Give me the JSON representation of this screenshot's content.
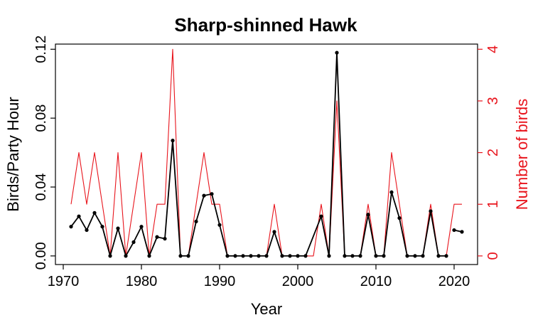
{
  "chart_data": {
    "type": "line",
    "title": "Sharp-shinned Hawk",
    "xlabel": "Year",
    "ylabel": "Birds/Party Hour",
    "y2label": "Number of birds",
    "xlim": [
      1969,
      2023
    ],
    "ylim": [
      -0.005,
      0.123
    ],
    "y2lim": [
      -0.1667,
      4.1
    ],
    "xticks": [
      1970,
      1980,
      1990,
      2000,
      2010,
      2020
    ],
    "yticks": [
      0.0,
      0.04,
      0.08,
      0.12
    ],
    "ytick_labels": [
      "0.00",
      "0.04",
      "0.08",
      "0.12"
    ],
    "y2ticks": [
      0,
      1,
      2,
      3,
      4
    ],
    "grid": false,
    "colors": {
      "primary": "#000000",
      "secondary": "#e8141c"
    },
    "series": [
      {
        "axis": "left",
        "color": "#000000",
        "markers": true,
        "segments": [
          [
            [
              1971,
              0.017
            ],
            [
              1972,
              0.023
            ],
            [
              1973,
              0.015
            ],
            [
              1974,
              0.025
            ],
            [
              1975,
              0.017
            ],
            [
              1976,
              0.0
            ],
            [
              1977,
              0.016
            ],
            [
              1978,
              0.0
            ],
            [
              1979,
              0.008
            ],
            [
              1980,
              0.017
            ],
            [
              1981,
              0.0
            ],
            [
              1982,
              0.011
            ],
            [
              1983,
              0.01
            ],
            [
              1984,
              0.067
            ],
            [
              1985,
              0.0
            ],
            [
              1986,
              0.0
            ],
            [
              1987,
              0.02
            ],
            [
              1988,
              0.035
            ],
            [
              1989,
              0.036
            ],
            [
              1990,
              0.018
            ],
            [
              1991,
              0.0
            ],
            [
              1992,
              0.0
            ],
            [
              1993,
              0.0
            ],
            [
              1994,
              0.0
            ],
            [
              1995,
              0.0
            ],
            [
              1996,
              0.0
            ],
            [
              1997,
              0.014
            ],
            [
              1998,
              0.0
            ],
            [
              1999,
              0.0
            ],
            [
              2000,
              0.0
            ],
            [
              2001,
              0.0
            ],
            [
              2003,
              0.023
            ],
            [
              2004,
              0.0
            ],
            [
              2005,
              0.118
            ],
            [
              2006,
              0.0
            ],
            [
              2007,
              0.0
            ],
            [
              2008,
              0.0
            ],
            [
              2009,
              0.024
            ],
            [
              2010,
              0.0
            ],
            [
              2011,
              0.0
            ],
            [
              2012,
              0.037
            ],
            [
              2013,
              0.022
            ],
            [
              2014,
              0.0
            ],
            [
              2015,
              0.0
            ],
            [
              2016,
              0.0
            ],
            [
              2017,
              0.026
            ],
            [
              2018,
              0.0
            ],
            [
              2019,
              0.0
            ]
          ],
          [
            [
              2020,
              0.015
            ],
            [
              2021,
              0.014
            ]
          ]
        ]
      },
      {
        "axis": "right",
        "color": "#e8141c",
        "markers": false,
        "segments": [
          [
            [
              1971,
              1
            ],
            [
              1972,
              2
            ],
            [
              1973,
              1
            ],
            [
              1974,
              2
            ],
            [
              1975,
              1
            ],
            [
              1976,
              0
            ],
            [
              1977,
              2
            ],
            [
              1978,
              0
            ],
            [
              1979,
              1
            ],
            [
              1980,
              2
            ],
            [
              1981,
              0
            ],
            [
              1982,
              1
            ],
            [
              1983,
              1
            ],
            [
              1984,
              4
            ],
            [
              1985,
              0
            ],
            [
              1986,
              0
            ],
            [
              1987,
              1
            ],
            [
              1988,
              2
            ],
            [
              1989,
              1
            ],
            [
              1990,
              1
            ],
            [
              1991,
              0
            ],
            [
              1992,
              0
            ],
            [
              1993,
              0
            ],
            [
              1994,
              0
            ],
            [
              1995,
              0
            ],
            [
              1996,
              0
            ],
            [
              1997,
              1
            ],
            [
              1998,
              0
            ],
            [
              1999,
              0
            ],
            [
              2000,
              0
            ],
            [
              2001,
              0
            ],
            [
              2002,
              0
            ],
            [
              2003,
              1
            ],
            [
              2004,
              0
            ],
            [
              2005,
              3
            ],
            [
              2006,
              0
            ],
            [
              2007,
              0
            ],
            [
              2008,
              0
            ],
            [
              2009,
              1
            ],
            [
              2010,
              0
            ],
            [
              2011,
              0
            ],
            [
              2012,
              2
            ],
            [
              2013,
              1
            ],
            [
              2014,
              0
            ],
            [
              2015,
              0
            ],
            [
              2016,
              0
            ],
            [
              2017,
              1
            ],
            [
              2018,
              0
            ],
            [
              2019,
              0
            ],
            [
              2020,
              1
            ],
            [
              2021,
              1
            ]
          ]
        ]
      }
    ]
  }
}
